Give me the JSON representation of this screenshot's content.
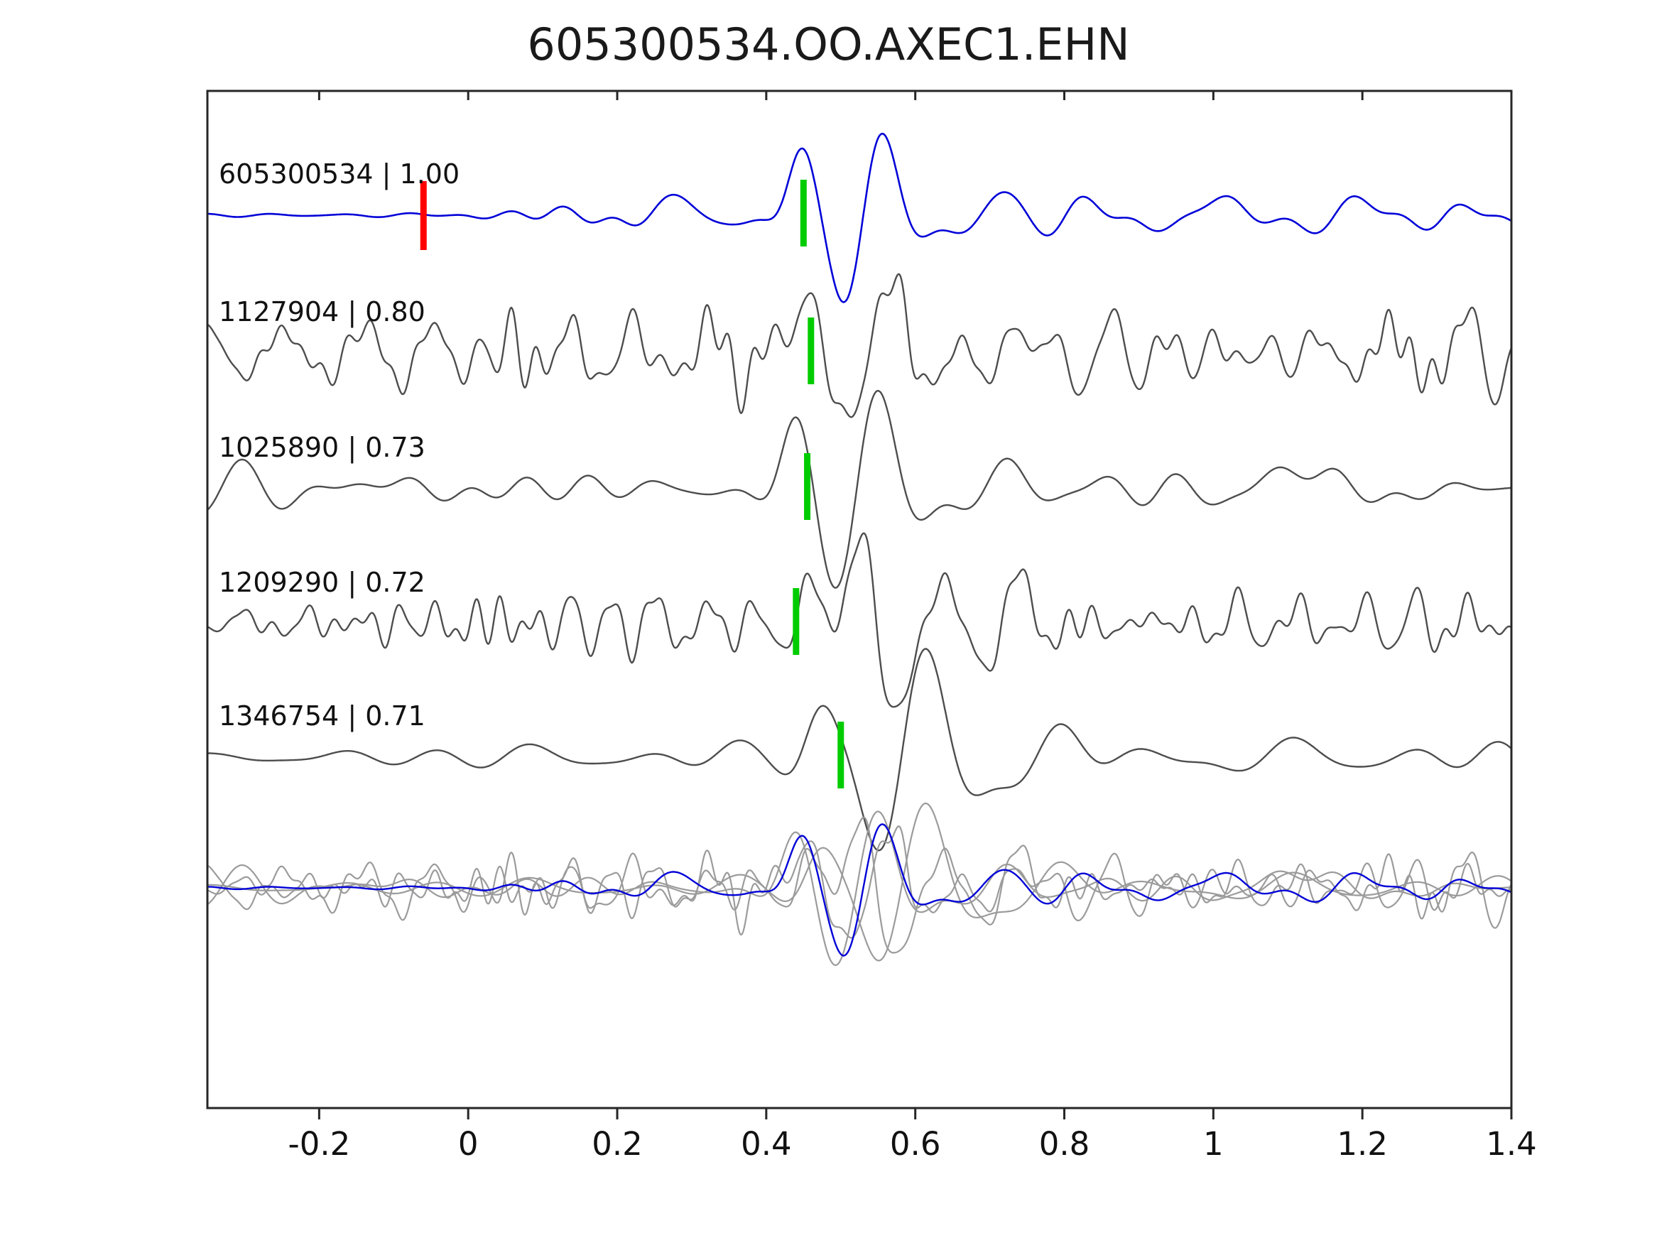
{
  "title": "605300534.OO.AXEC1.EHN",
  "colors": {
    "template_blue": "#0202d8",
    "detection_gray": "#4d4d4d",
    "overlay_gray": "#9b9b9b",
    "pick_green": "#00cc00",
    "origin_red": "#fe0000",
    "axis": "#262626",
    "text": "#111111",
    "background": "#ffffff"
  },
  "chart_data": {
    "type": "line",
    "title": "605300534.OO.AXEC1.EHN",
    "xlabel": "",
    "ylabel": "",
    "xlim": [
      -0.35,
      1.4
    ],
    "x_ticks": [
      -0.2,
      0,
      0.2,
      0.4,
      0.6,
      0.8,
      1,
      1.2,
      1.4
    ],
    "x_tick_labels": [
      "-0.2",
      "0",
      "0.2",
      "0.4",
      "0.6",
      "0.8",
      "1",
      "1.2",
      "1.4"
    ],
    "grid": false,
    "legend": false,
    "description": "Template seismic waveform (blue, top) compared with four detected event waveforms (dark gray). Green bars mark phase pick times, the red bar marks template zero time, and the bottom panel overlays all five traces (grays plus blue template).",
    "traces": [
      {
        "label": "605300534 | 1.00",
        "event_id": "605300534",
        "correlation": 1.0,
        "role": "template",
        "color": "template_blue",
        "pick_x": 0.45,
        "origin_marker_x": -0.06,
        "synth": {
          "seed": 11,
          "ncomp": 34,
          "fmin": 5,
          "fmax": 16,
          "noise_amp": 14,
          "env": [
            [
              -0.35,
              0.06
            ],
            [
              -0.02,
              0.1
            ],
            [
              0.1,
              0.45
            ],
            [
              0.3,
              0.95
            ],
            [
              1.4,
              0.95
            ]
          ],
          "packets": [
            {
              "t0": 0.3,
              "A": 26,
              "f": 8.5,
              "w": 0.05,
              "ph": 1.6
            },
            {
              "t0": 0.445,
              "A": 55,
              "f": 9.0,
              "w": 0.035,
              "ph": 1.57
            },
            {
              "t0": 0.525,
              "A": 132,
              "f": 9.0,
              "w": 0.075,
              "ph": 0.0
            },
            {
              "t0": 0.7,
              "A": 38,
              "f": 8.0,
              "w": 0.09,
              "ph": 0.8
            },
            {
              "t0": 1.0,
              "A": 16,
              "f": 5.0,
              "w": 0.3,
              "ph": 1.2
            }
          ]
        }
      },
      {
        "label": "1127904 | 0.80",
        "event_id": "1127904",
        "correlation": 0.8,
        "role": "detection",
        "color": "detection_gray",
        "pick_x": 0.46,
        "origin_marker_x": null,
        "synth": {
          "seed": 23,
          "ncomp": 42,
          "fmin": 8,
          "fmax": 40,
          "noise_amp": 26,
          "env": [
            [
              -0.35,
              1.0
            ],
            [
              1.4,
              1.0
            ]
          ],
          "packets": [
            {
              "t0": 0.455,
              "A": 60,
              "f": 9.0,
              "w": 0.035,
              "ph": 1.57
            },
            {
              "t0": 0.535,
              "A": 118,
              "f": 8.5,
              "w": 0.08,
              "ph": 0.0
            },
            {
              "t0": 0.72,
              "A": 32,
              "f": 8.0,
              "w": 0.1,
              "ph": 0.5
            }
          ]
        }
      },
      {
        "label": "1025890 | 0.73",
        "event_id": "1025890",
        "correlation": 0.73,
        "role": "detection",
        "color": "detection_gray",
        "pick_x": 0.455,
        "origin_marker_x": null,
        "synth": {
          "seed": 37,
          "ncomp": 30,
          "fmin": 3,
          "fmax": 14,
          "noise_amp": 13,
          "env": [
            [
              -0.35,
              1.0
            ],
            [
              1.4,
              1.0
            ]
          ],
          "packets": [
            {
              "t0": 0.44,
              "A": 52,
              "f": 8.0,
              "w": 0.04,
              "ph": 1.57
            },
            {
              "t0": 0.525,
              "A": 140,
              "f": 8.0,
              "w": 0.08,
              "ph": 0.0
            },
            {
              "t0": 0.7,
              "A": 30,
              "f": 7.0,
              "w": 0.09,
              "ph": 0.6
            },
            {
              "t0": 1.1,
              "A": 24,
              "f": 3.5,
              "w": 0.12,
              "ph": 1.57
            }
          ]
        }
      },
      {
        "label": "1209290 | 0.72",
        "event_id": "1209290",
        "correlation": 0.72,
        "role": "detection",
        "color": "detection_gray",
        "pick_x": 0.44,
        "origin_marker_x": null,
        "synth": {
          "seed": 53,
          "ncomp": 42,
          "fmin": 8,
          "fmax": 38,
          "noise_amp": 26,
          "env": [
            [
              -0.35,
              1.0
            ],
            [
              1.4,
              1.0
            ]
          ],
          "packets": [
            {
              "t0": 0.45,
              "A": 60,
              "f": 8.5,
              "w": 0.04,
              "ph": 1.57
            },
            {
              "t0": 0.545,
              "A": 130,
              "f": 7.5,
              "w": 0.085,
              "ph": 3.14
            },
            {
              "t0": 0.72,
              "A": 36,
              "f": 7.0,
              "w": 0.1,
              "ph": 0.3
            }
          ]
        }
      },
      {
        "label": "1346754 | 0.71",
        "event_id": "1346754",
        "correlation": 0.71,
        "role": "detection",
        "color": "detection_gray",
        "pick_x": 0.5,
        "origin_marker_x": null,
        "synth": {
          "seed": 71,
          "ncomp": 32,
          "fmin": 3,
          "fmax": 12,
          "noise_amp": 15,
          "env": [
            [
              -0.35,
              1.0
            ],
            [
              1.4,
              1.0
            ]
          ],
          "packets": [
            {
              "t0": 0.47,
              "A": 45,
              "f": 8.0,
              "w": 0.04,
              "ph": 1.57
            },
            {
              "t0": 0.585,
              "A": 140,
              "f": 7.5,
              "w": 0.09,
              "ph": 0.0
            },
            {
              "t0": 0.78,
              "A": 46,
              "f": 7.0,
              "w": 0.08,
              "ph": 0.8
            }
          ]
        }
      }
    ],
    "overlay_panel": {
      "contains": [
        "605300534",
        "1127904",
        "1025890",
        "1209290",
        "1346754"
      ],
      "scale": 0.78
    }
  }
}
